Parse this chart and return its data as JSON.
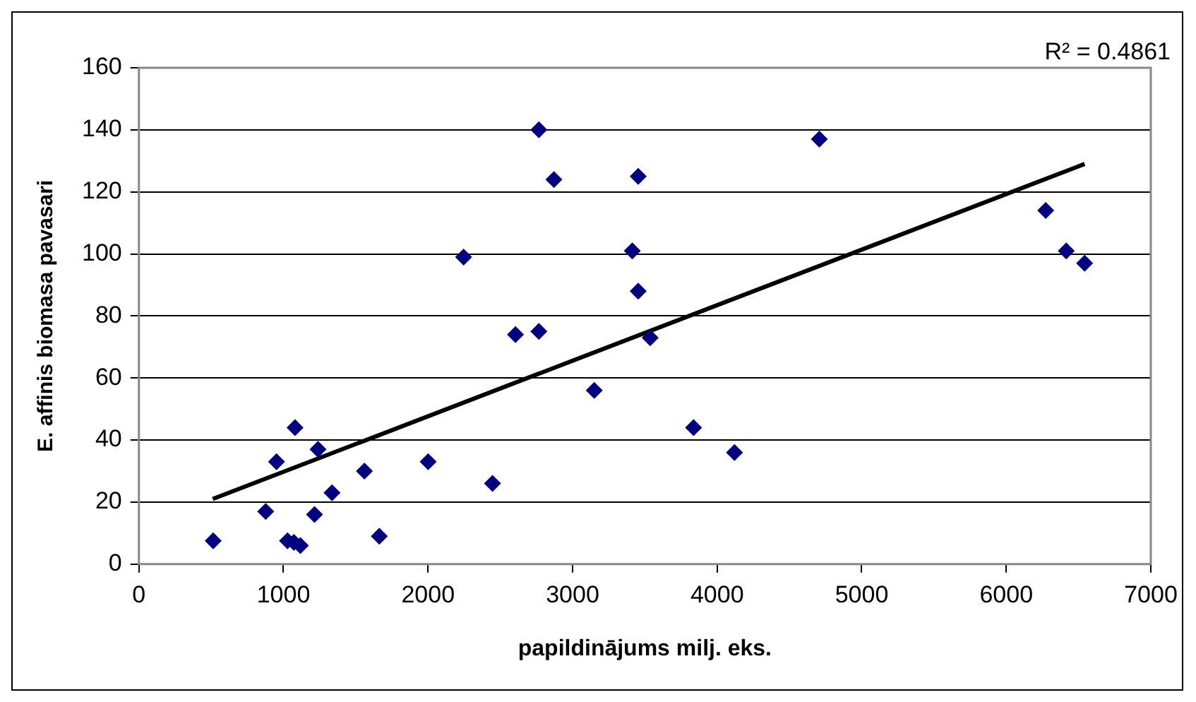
{
  "chart_data": {
    "type": "scatter",
    "xlabel": "papildinājums milj. eks.",
    "ylabel": "E. affinis biomasa pavasari",
    "annotations": [
      "R² = 0.4861"
    ],
    "xlim": [
      0,
      7000
    ],
    "xticks": [
      0,
      1000,
      2000,
      3000,
      4000,
      5000,
      6000,
      7000
    ],
    "ylim": [
      0,
      160
    ],
    "yticks": [
      0,
      20,
      40,
      60,
      80,
      100,
      120,
      140,
      160
    ],
    "grid": "y",
    "legend": false,
    "series": [
      {
        "marker": "diamond",
        "color": "#000080",
        "x": [
          514,
          877,
          952,
          1028,
          1072,
          1117,
          1080,
          1239,
          1215,
          1336,
          1560,
          1663,
          2001,
          2246,
          2446,
          2605,
          2767,
          2767,
          2871,
          3150,
          3413,
          3454,
          3454,
          3537,
          4707,
          3837,
          4120,
          6273,
          6415,
          6542
        ],
        "values": [
          7.5,
          17,
          33,
          7.5,
          7,
          6,
          44,
          37,
          16,
          23,
          30,
          9,
          33,
          99,
          26,
          74,
          75,
          140,
          124,
          56,
          101,
          125,
          88,
          73,
          137,
          44,
          36,
          114,
          101,
          97
        ]
      },
      {
        "type": "line",
        "marker": "none",
        "color": "#000000",
        "x": [
          511,
          6542
        ],
        "values": [
          21,
          129
        ]
      }
    ]
  }
}
